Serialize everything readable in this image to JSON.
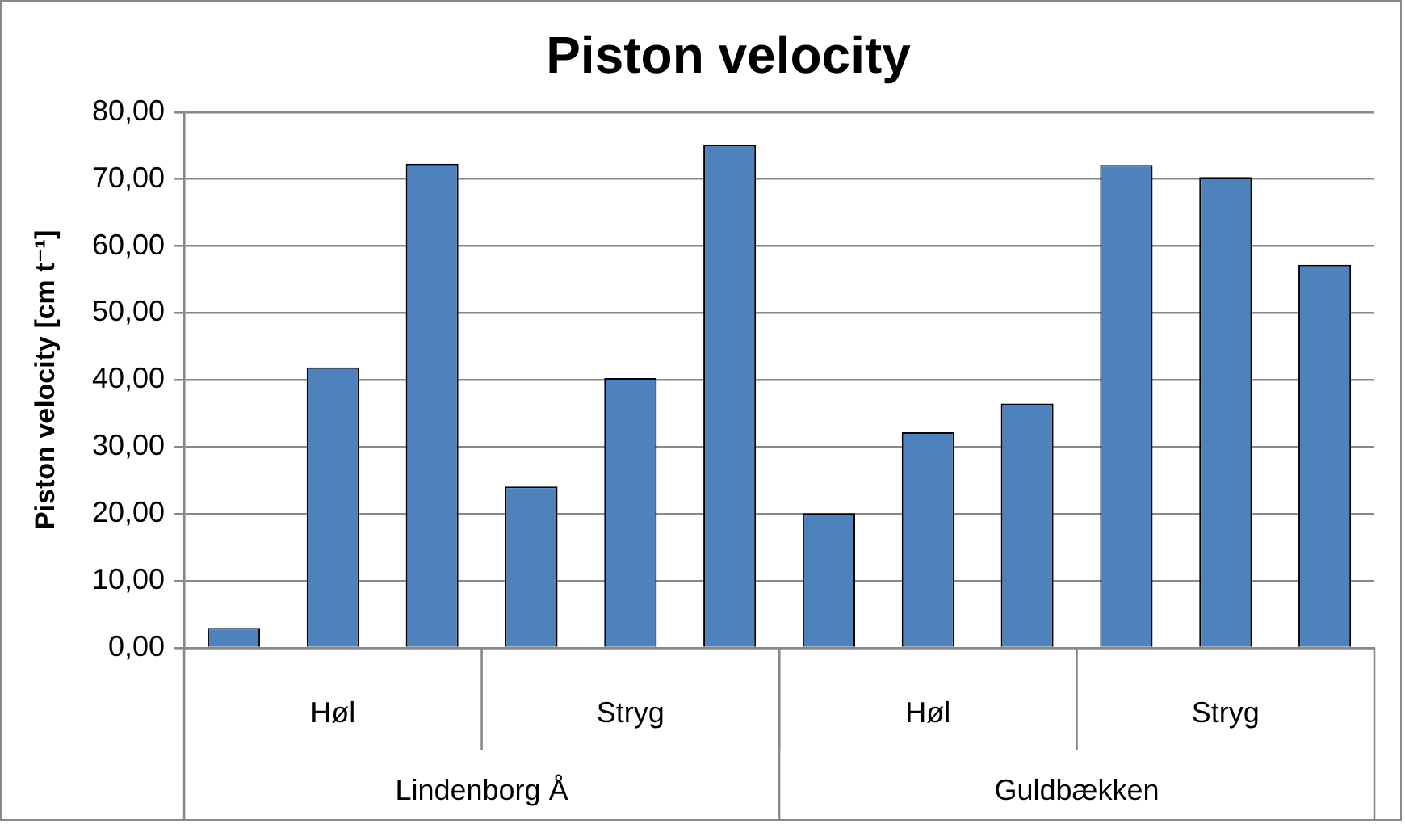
{
  "chart_data": {
    "type": "bar",
    "title": "Piston velocity",
    "ylabel": "Piston velocity [cm t⁻¹]",
    "categories": [
      null,
      "Høl",
      null,
      null,
      "Stryg",
      null,
      null,
      "Høl",
      null,
      null,
      "Stryg",
      null
    ],
    "values": [
      3.0,
      41.9,
      72.3,
      24.1,
      40.3,
      75.1,
      20.1,
      32.2,
      36.5,
      72.1,
      70.3,
      57.2
    ],
    "color": "#4f81bd",
    "ylim": [
      0,
      80
    ],
    "yticks": [
      {
        "value": 0,
        "label": "0,00"
      },
      {
        "value": 10,
        "label": "10,00"
      },
      {
        "value": 20,
        "label": "20,00"
      },
      {
        "value": 30,
        "label": "30,00"
      },
      {
        "value": 40,
        "label": "40,00"
      },
      {
        "value": 50,
        "label": "50,00"
      },
      {
        "value": 60,
        "label": "60,00"
      },
      {
        "value": 70,
        "label": "70,00"
      },
      {
        "value": 80,
        "label": "80,00"
      }
    ],
    "grid": "y",
    "annotations": [
      "Lindenborg Å",
      "Guldbækken"
    ]
  }
}
